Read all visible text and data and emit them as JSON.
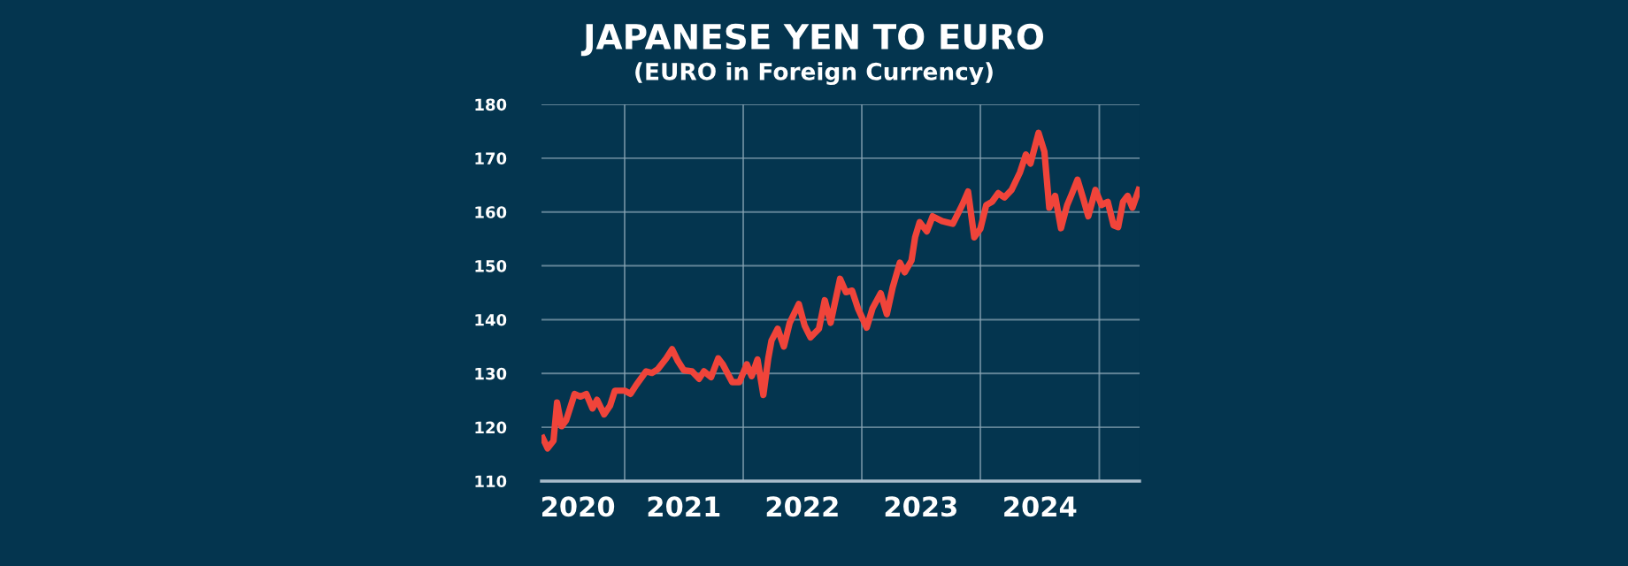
{
  "chart_data": {
    "type": "line",
    "title": "JAPANESE YEN TO EURO",
    "subtitle": "(EURO in Foreign Currency)",
    "x": [
      "2020-04-24",
      "2020-05-09",
      "2020-05-27",
      "2020-06-07",
      "2020-06-21",
      "2020-07-05",
      "2020-07-31",
      "2020-08-18",
      "2020-09-05",
      "2020-09-24",
      "2020-10-08",
      "2020-10-30",
      "2020-11-17",
      "2020-12-02",
      "2021-01-01",
      "2021-01-19",
      "2021-02-06",
      "2021-03-08",
      "2021-03-26",
      "2021-04-13",
      "2021-05-09",
      "2021-05-27",
      "2021-06-14",
      "2021-07-02",
      "2021-07-27",
      "2021-08-18",
      "2021-09-02",
      "2021-09-24",
      "2021-10-16",
      "2021-10-30",
      "2021-11-28",
      "2021-12-20",
      "2022-01-12",
      "2022-01-27",
      "2022-02-14",
      "2022-03-04",
      "2022-03-19",
      "2022-03-29",
      "2022-04-17",
      "2022-05-06",
      "2022-05-24",
      "2022-06-21",
      "2022-07-09",
      "2022-07-27",
      "2022-08-22",
      "2022-09-09",
      "2022-09-27",
      "2022-10-26",
      "2022-11-13",
      "2022-12-02",
      "2022-12-20",
      "2023-01-16",
      "2023-02-03",
      "2023-02-28",
      "2023-03-19",
      "2023-04-06",
      "2023-04-28",
      "2023-05-13",
      "2023-06-03",
      "2023-06-14",
      "2023-06-28",
      "2023-07-20",
      "2023-08-07",
      "2023-09-05",
      "2023-10-08",
      "2023-11-06",
      "2023-11-24",
      "2023-12-13",
      "2024-01-01",
      "2024-01-19",
      "2024-02-06",
      "2024-02-25",
      "2024-03-15",
      "2024-04-06",
      "2024-05-02",
      "2024-05-20",
      "2024-06-03",
      "2024-06-28",
      "2024-07-16",
      "2024-07-31",
      "2024-08-18",
      "2024-09-05",
      "2024-09-24",
      "2024-10-08",
      "2024-10-26",
      "2024-11-13",
      "2024-11-28",
      "2024-12-20",
      "2025-01-08",
      "2025-01-27",
      "2025-02-14",
      "2025-02-28",
      "2025-03-15",
      "2025-03-29",
      "2025-04-13",
      "2025-05-02"
    ],
    "series": [
      {
        "color": "#f0443a",
        "values": [
          118.0,
          116.1,
          117.5,
          124.6,
          120.2,
          121.3,
          126.2,
          125.7,
          126.2,
          123.5,
          125.1,
          122.4,
          124.0,
          126.8,
          126.8,
          126.2,
          127.9,
          130.4,
          130.1,
          130.8,
          132.8,
          134.5,
          132.3,
          130.6,
          130.4,
          129.0,
          130.4,
          129.3,
          132.8,
          131.7,
          128.4,
          128.4,
          131.7,
          129.5,
          132.6,
          126.0,
          132.8,
          136.1,
          138.3,
          135.0,
          139.4,
          142.9,
          138.9,
          136.7,
          138.3,
          143.6,
          139.4,
          147.6,
          145.1,
          145.4,
          142.1,
          138.5,
          142.1,
          144.9,
          141.0,
          146.0,
          150.6,
          148.8,
          151.0,
          155.3,
          158.1,
          156.4,
          159.2,
          158.3,
          157.8,
          161.3,
          163.8,
          155.3,
          156.9,
          161.3,
          161.9,
          163.5,
          162.7,
          164.1,
          167.4,
          170.7,
          169.0,
          174.7,
          171.2,
          160.8,
          163.0,
          157.0,
          161.3,
          163.3,
          166.0,
          162.4,
          159.2,
          164.1,
          161.3,
          161.9,
          157.5,
          157.2,
          161.9,
          163.0,
          160.8,
          164.1
        ]
      }
    ],
    "xlim": [
      "2020-04-20",
      "2025-05-05"
    ],
    "xticks": [
      {
        "value": "2020-08-10",
        "label": "2020"
      },
      {
        "value": "2021-01-01",
        "label": null
      },
      {
        "value": "2021-07-02",
        "label": "2021"
      },
      {
        "value": "2022-01-01",
        "label": null
      },
      {
        "value": "2022-07-02",
        "label": "2022"
      },
      {
        "value": "2023-01-01",
        "label": null
      },
      {
        "value": "2023-07-02",
        "label": "2023"
      },
      {
        "value": "2024-01-01",
        "label": null
      },
      {
        "value": "2024-07-02",
        "label": "2024"
      },
      {
        "value": "2025-01-01",
        "label": null
      }
    ],
    "ylim": [
      110,
      180
    ],
    "yticks": [
      110,
      120,
      130,
      140,
      150,
      160,
      170,
      180
    ],
    "grid": true,
    "marker": "none",
    "line_style": "solid",
    "legend": false
  }
}
